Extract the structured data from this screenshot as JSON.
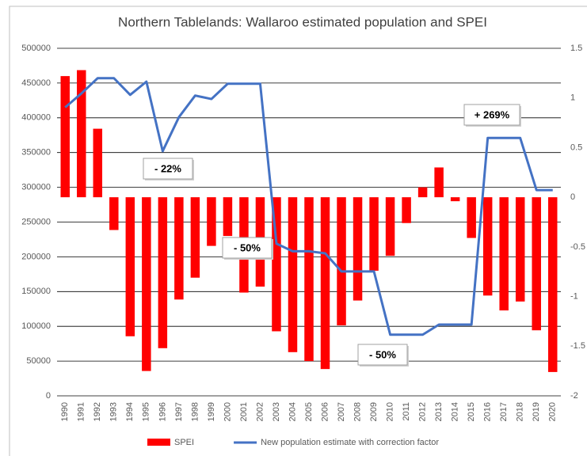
{
  "chart_data": {
    "type": "combo",
    "title": "Northern Tablelands: Wallaroo estimated population and SPEI",
    "categories": [
      "1990",
      "1991",
      "1992",
      "1993",
      "1994",
      "1995",
      "1996",
      "1997",
      "1998",
      "1999",
      "2000",
      "2001",
      "2002",
      "2003",
      "2004",
      "2005",
      "2006",
      "2007",
      "2008",
      "2009",
      "2010",
      "2011",
      "2012",
      "2013",
      "2014",
      "2015",
      "2016",
      "2017",
      "2018",
      "2019",
      "2020"
    ],
    "series": [
      {
        "name": "SPEI",
        "type": "bar",
        "axis": "y2",
        "color": "#ff0000",
        "values": [
          1.22,
          1.28,
          0.69,
          -0.33,
          -1.4,
          -1.75,
          -1.52,
          -1.03,
          -0.81,
          -0.49,
          -0.39,
          -0.96,
          -0.9,
          -1.35,
          -1.56,
          -1.65,
          -1.73,
          -1.29,
          -1.04,
          -0.74,
          -0.59,
          -0.26,
          0.1,
          0.3,
          -0.04,
          -0.41,
          -0.99,
          -1.14,
          -1.05,
          -1.34,
          -1.76
        ]
      },
      {
        "name": "New population estimate with correction factor",
        "type": "line",
        "color": "#4472c4",
        "values": [
          415000,
          435000,
          457000,
          457000,
          433000,
          452000,
          352000,
          401000,
          432000,
          427000,
          449000,
          449000,
          449000,
          219000,
          208000,
          208000,
          205000,
          179000,
          179000,
          179000,
          88000,
          88000,
          88000,
          102500,
          102500,
          102500,
          371000,
          371000,
          371000,
          296000,
          296000
        ]
      }
    ],
    "ylim": [
      0,
      500000
    ],
    "yticks": [
      0,
      50000,
      100000,
      150000,
      200000,
      250000,
      300000,
      350000,
      400000,
      450000,
      500000
    ],
    "y2lim": [
      -2,
      1.5
    ],
    "y2ticks": [
      -2,
      -1.5,
      -1,
      -0.5,
      0,
      0.5,
      1,
      1.5
    ],
    "grid": true,
    "legend": "bottom",
    "annotations": [
      "- 22%",
      "- 50%",
      "+ 269%",
      "- 50%"
    ]
  }
}
